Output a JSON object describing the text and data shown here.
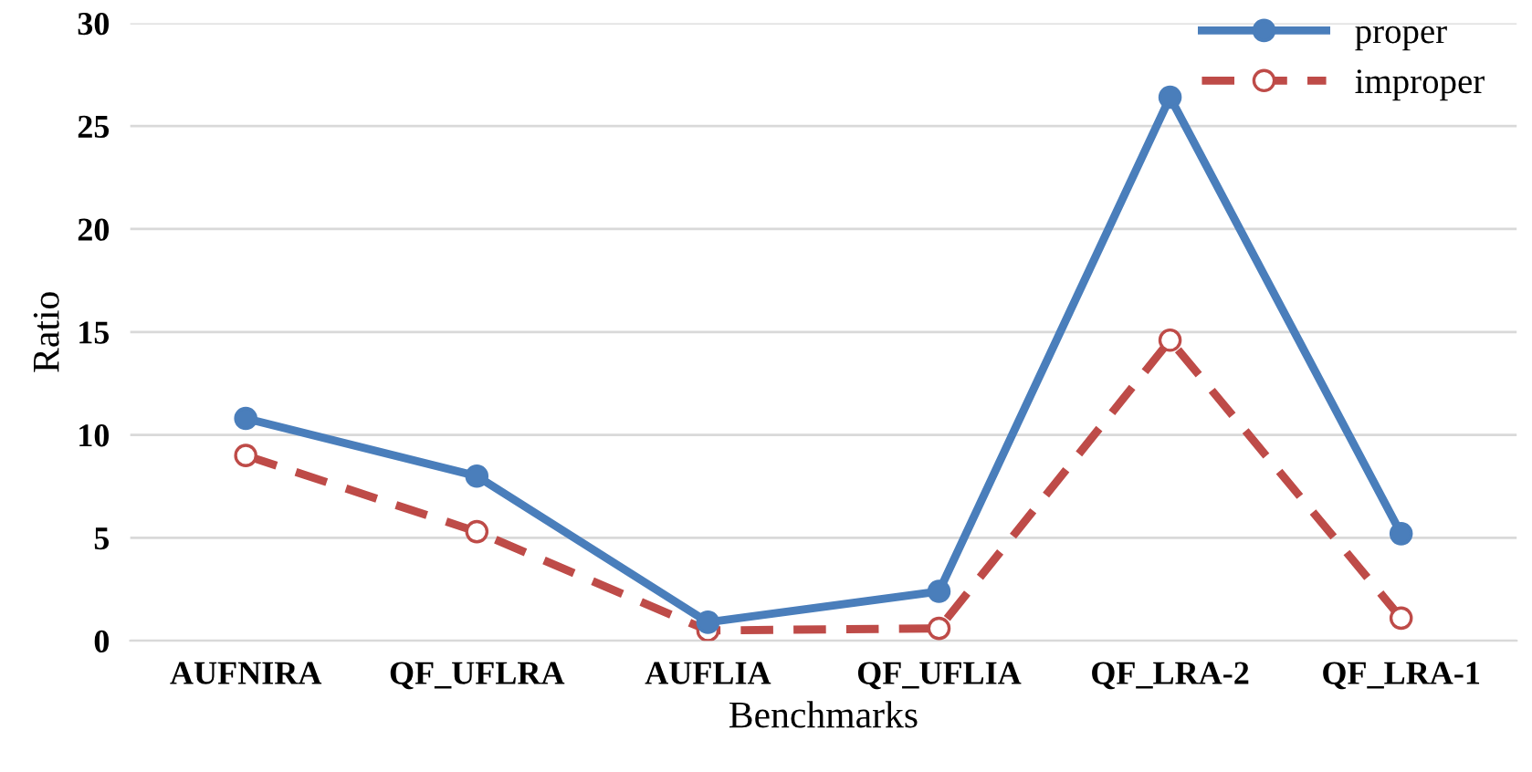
{
  "chart_data": {
    "type": "line",
    "xlabel": "Benchmarks",
    "ylabel": "Ratio",
    "categories": [
      "AUFNIRA",
      "QF_UFLRA",
      "AUFLIA",
      "QF_UFLIA",
      "QF_LRA-2",
      "QF_LRA-1"
    ],
    "series": [
      {
        "name": "proper",
        "color": "#4a7ebb",
        "values": [
          10.8,
          8.0,
          0.9,
          2.4,
          26.4,
          5.2
        ],
        "marker": "circle",
        "line_style": "solid"
      },
      {
        "name": "improper",
        "color": "#be4b48",
        "values": [
          9.0,
          5.3,
          0.5,
          0.6,
          14.6,
          1.1
        ],
        "marker": "circle",
        "line_style": "dashed"
      }
    ],
    "ylim": [
      0,
      30
    ],
    "yticks": [
      0,
      5,
      10,
      15,
      20,
      25,
      30
    ],
    "grid": "y",
    "legend": "top right"
  }
}
